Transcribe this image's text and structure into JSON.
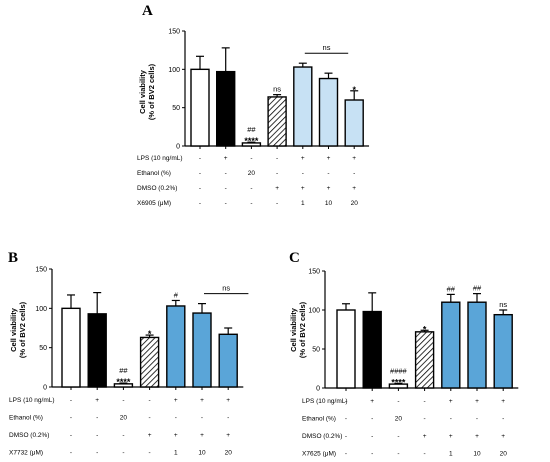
{
  "colors": {
    "white": "#ffffff",
    "black": "#000000",
    "light_blue": "#c7e1f4",
    "mid_blue": "#5aa5d8"
  },
  "chart_data": [
    {
      "panel": "A",
      "type": "bar",
      "ylabel": "Cell viability\n(% of BV2 cells)",
      "ylim": [
        0,
        150
      ],
      "yticks": [
        "0",
        "50",
        "100",
        "150"
      ],
      "values": [
        100,
        97,
        4,
        64,
        103,
        88,
        60
      ],
      "errors": [
        17,
        31,
        1,
        3,
        5,
        7,
        12
      ],
      "fills": [
        "white",
        "black",
        "white",
        "hatched",
        "light_blue",
        "light_blue",
        "light_blue"
      ],
      "annotations": [
        "",
        "",
        "##\n****",
        "ns",
        "",
        "",
        "*"
      ],
      "bracket": {
        "from": 4,
        "to": 5,
        "label": "ns"
      },
      "conditions": [
        {
          "label": "LPS (10 ng/mL)",
          "cells": [
            "-",
            "+",
            "-",
            "-",
            "+",
            "+",
            "+"
          ]
        },
        {
          "label": "Ethanol (%)",
          "cells": [
            "-",
            "-",
            "20",
            "-",
            "-",
            "-",
            "-"
          ]
        },
        {
          "label": "DMSO (0.2%)",
          "cells": [
            "-",
            "-",
            "-",
            "+",
            "+",
            "+",
            "+"
          ]
        },
        {
          "label": "X6905 (μM)",
          "cells": [
            "-",
            "-",
            "-",
            "-",
            "1",
            "10",
            "20"
          ]
        }
      ]
    },
    {
      "panel": "B",
      "type": "bar",
      "ylabel": "Cell viability\n(% of BV2 cells)",
      "ylim": [
        0,
        150
      ],
      "yticks": [
        "0",
        "50",
        "100",
        "150"
      ],
      "values": [
        100,
        93,
        4,
        63,
        103,
        94,
        67
      ],
      "errors": [
        17,
        27,
        1,
        3,
        7,
        12,
        8
      ],
      "fills": [
        "white",
        "black",
        "white",
        "hatched",
        "mid_blue",
        "mid_blue",
        "mid_blue"
      ],
      "annotations": [
        "",
        "",
        "##\n****",
        "*",
        "#",
        "",
        ""
      ],
      "bracket": {
        "from": 5,
        "to": 6,
        "label": "ns"
      },
      "conditions": [
        {
          "label": "LPS (10 ng/mL)",
          "cells": [
            "-",
            "+",
            "-",
            "-",
            "+",
            "+",
            "+"
          ]
        },
        {
          "label": "Ethanol (%)",
          "cells": [
            "-",
            "-",
            "20",
            "-",
            "-",
            "-",
            "-"
          ]
        },
        {
          "label": "DMSO (0.2%)",
          "cells": [
            "-",
            "-",
            "-",
            "+",
            "+",
            "+",
            "+"
          ]
        },
        {
          "label": "X7732 (μM)",
          "cells": [
            "-",
            "-",
            "-",
            "-",
            "1",
            "10",
            "20"
          ]
        }
      ]
    },
    {
      "panel": "C",
      "type": "bar",
      "ylabel": "Cell viability\n(% of BV2 cells)",
      "ylim": [
        0,
        150
      ],
      "yticks": [
        "0",
        "50",
        "100",
        "150"
      ],
      "values": [
        100,
        98,
        5,
        72,
        110,
        110,
        94
      ],
      "errors": [
        8,
        24,
        1,
        2,
        10,
        11,
        6
      ],
      "fills": [
        "white",
        "black",
        "white",
        "hatched",
        "mid_blue",
        "mid_blue",
        "mid_blue"
      ],
      "annotations": [
        "",
        "",
        "####\n****",
        "*",
        "##",
        "##",
        "ns"
      ],
      "bracket": null,
      "conditions": [
        {
          "label": "LPS (10 ng/mL)",
          "cells": [
            "-",
            "+",
            "-",
            "-",
            "+",
            "+",
            "+"
          ]
        },
        {
          "label": "Ethanol (%)",
          "cells": [
            "-",
            "-",
            "20",
            "-",
            "-",
            "-",
            "-"
          ]
        },
        {
          "label": "DMSO (0.2%)",
          "cells": [
            "-",
            "-",
            "-",
            "+",
            "+",
            "+",
            "+"
          ]
        },
        {
          "label": "X7625 (μM)",
          "cells": [
            "-",
            "-",
            "-",
            "-",
            "1",
            "10",
            "20"
          ]
        }
      ]
    }
  ]
}
